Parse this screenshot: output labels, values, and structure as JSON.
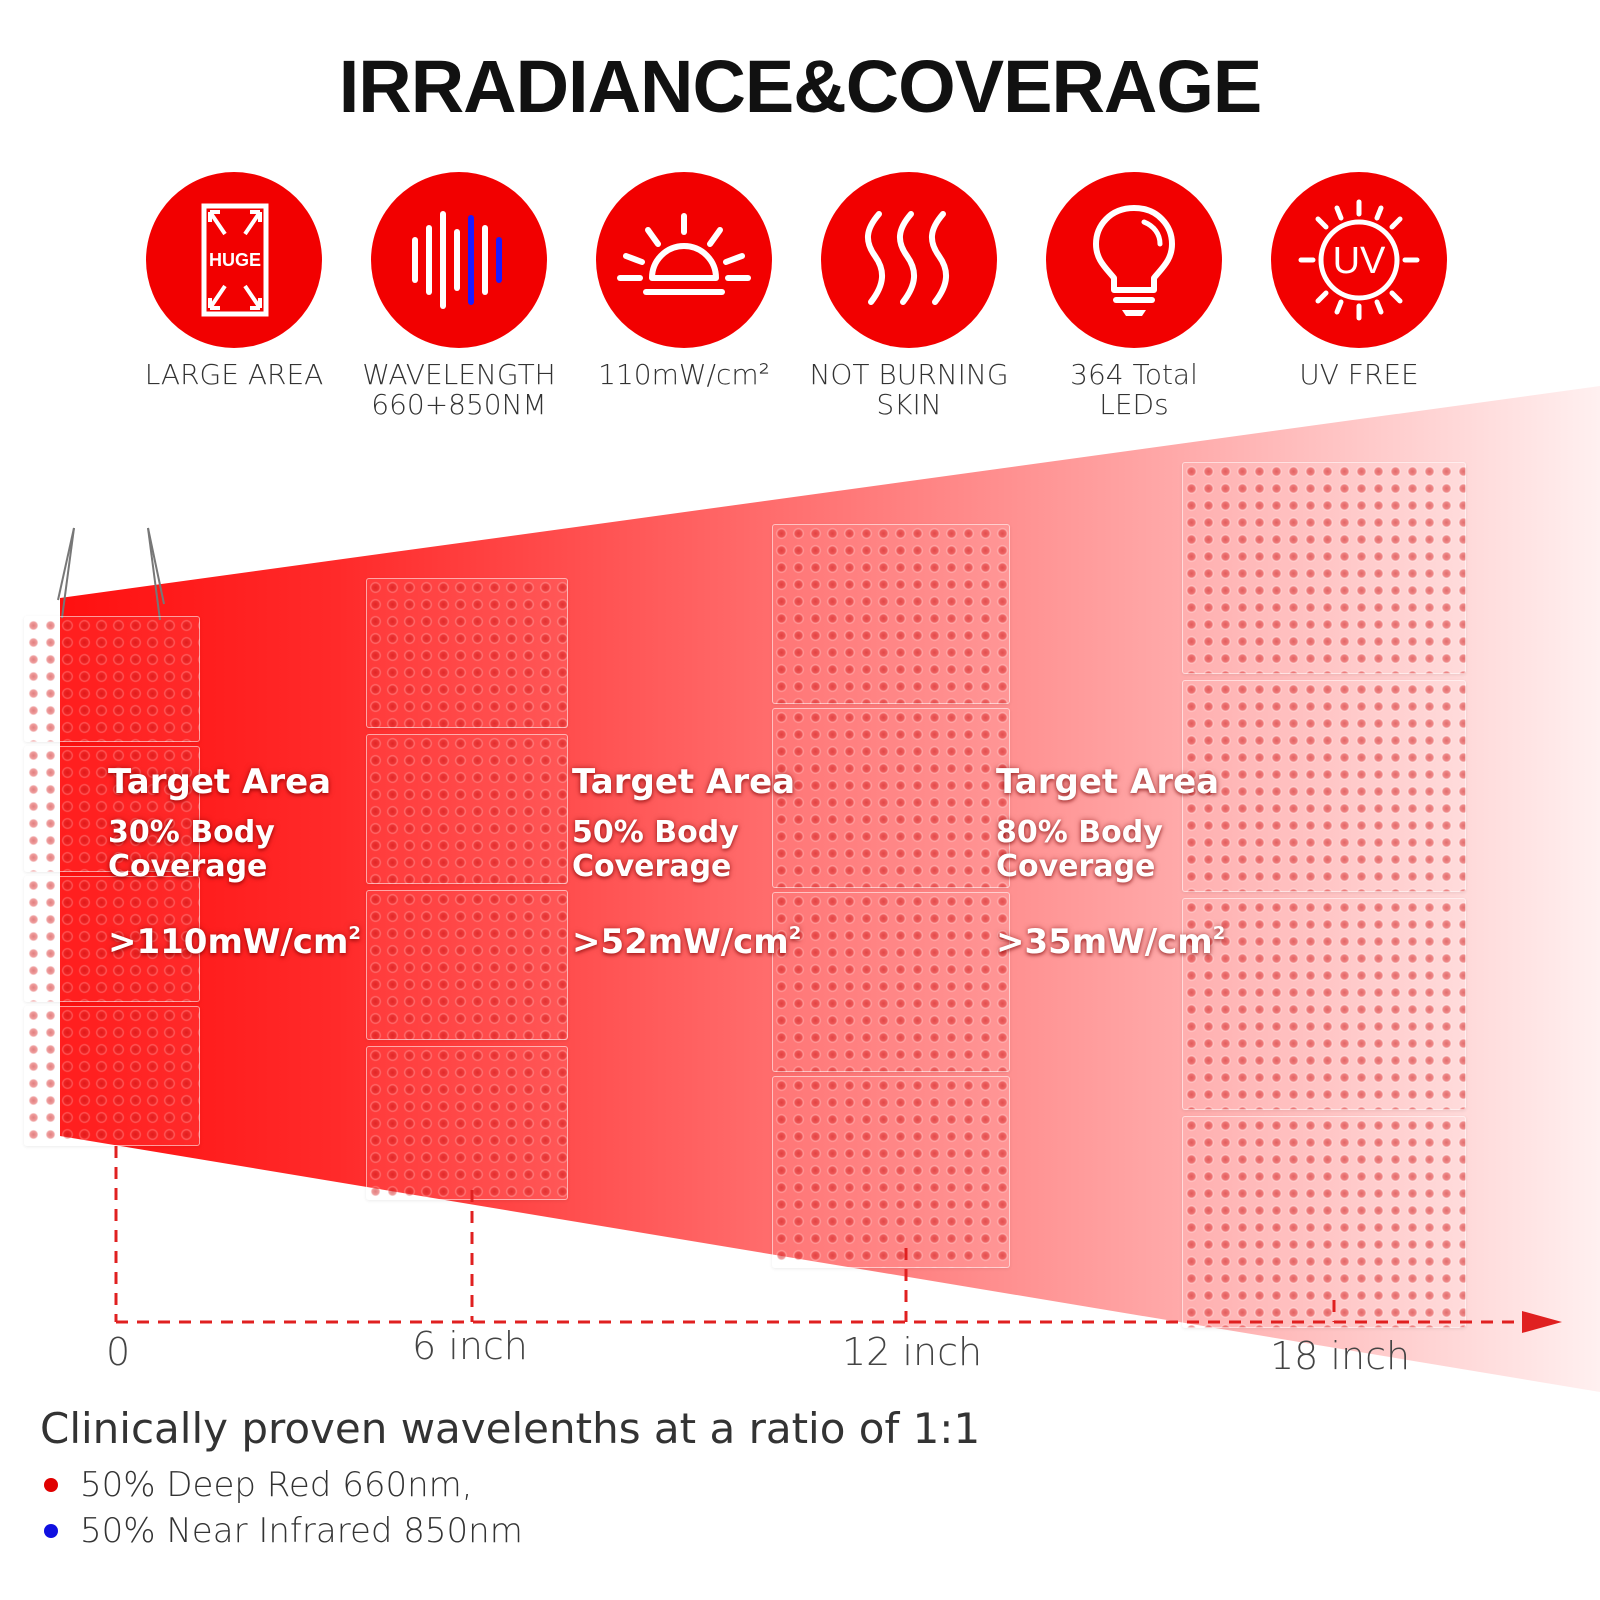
{
  "title": "IRRADIANCE&COVERAGE",
  "features": [
    {
      "icon": "huge-panel-icon",
      "icon_text": "HUGE",
      "label_lines": [
        "LARGE AREA"
      ]
    },
    {
      "icon": "wavelength-icon",
      "label_lines": [
        "WAVELENGTH",
        "660+850NM"
      ]
    },
    {
      "icon": "sunrise-icon",
      "label_lines": [
        "110mW/cm²"
      ]
    },
    {
      "icon": "heat-waves-icon",
      "label_lines": [
        "NOT BURNING",
        "SKIN"
      ]
    },
    {
      "icon": "light-bulb-icon",
      "label_lines": [
        "364 Total",
        "LEDs"
      ]
    },
    {
      "icon": "uv-sun-icon",
      "icon_text": "UV",
      "label_lines": [
        "UV FREE"
      ]
    }
  ],
  "zones": [
    {
      "heading": "Target Area",
      "coverage_line1": "30% Body",
      "coverage_line2": "Coverage",
      "power": ">110mW/cm",
      "power_sup": "2"
    },
    {
      "heading": "Target Area",
      "coverage_line1": "50% Body",
      "coverage_line2": "Coverage",
      "power": ">52mW/cm",
      "power_sup": "2"
    },
    {
      "heading": "Target Area",
      "coverage_line1": "80% Body",
      "coverage_line2": "Coverage",
      "power": ">35mW/cm",
      "power_sup": "2"
    }
  ],
  "distance_ticks": [
    "0",
    "6 inch",
    "12 inch",
    "18 inch"
  ],
  "bottom": {
    "heading": "Clinically proven wavelenths at a ratio of 1:1",
    "items": [
      {
        "text": "50% Deep Red 660nm,",
        "dot_color": "#e00000"
      },
      {
        "text": "50% Near Infrared 850nm",
        "dot_color": "#1010e0"
      }
    ]
  },
  "colors": {
    "accent_red": "#f20000",
    "infrared_blue": "#1a1aff",
    "axis_red": "#e02020"
  }
}
